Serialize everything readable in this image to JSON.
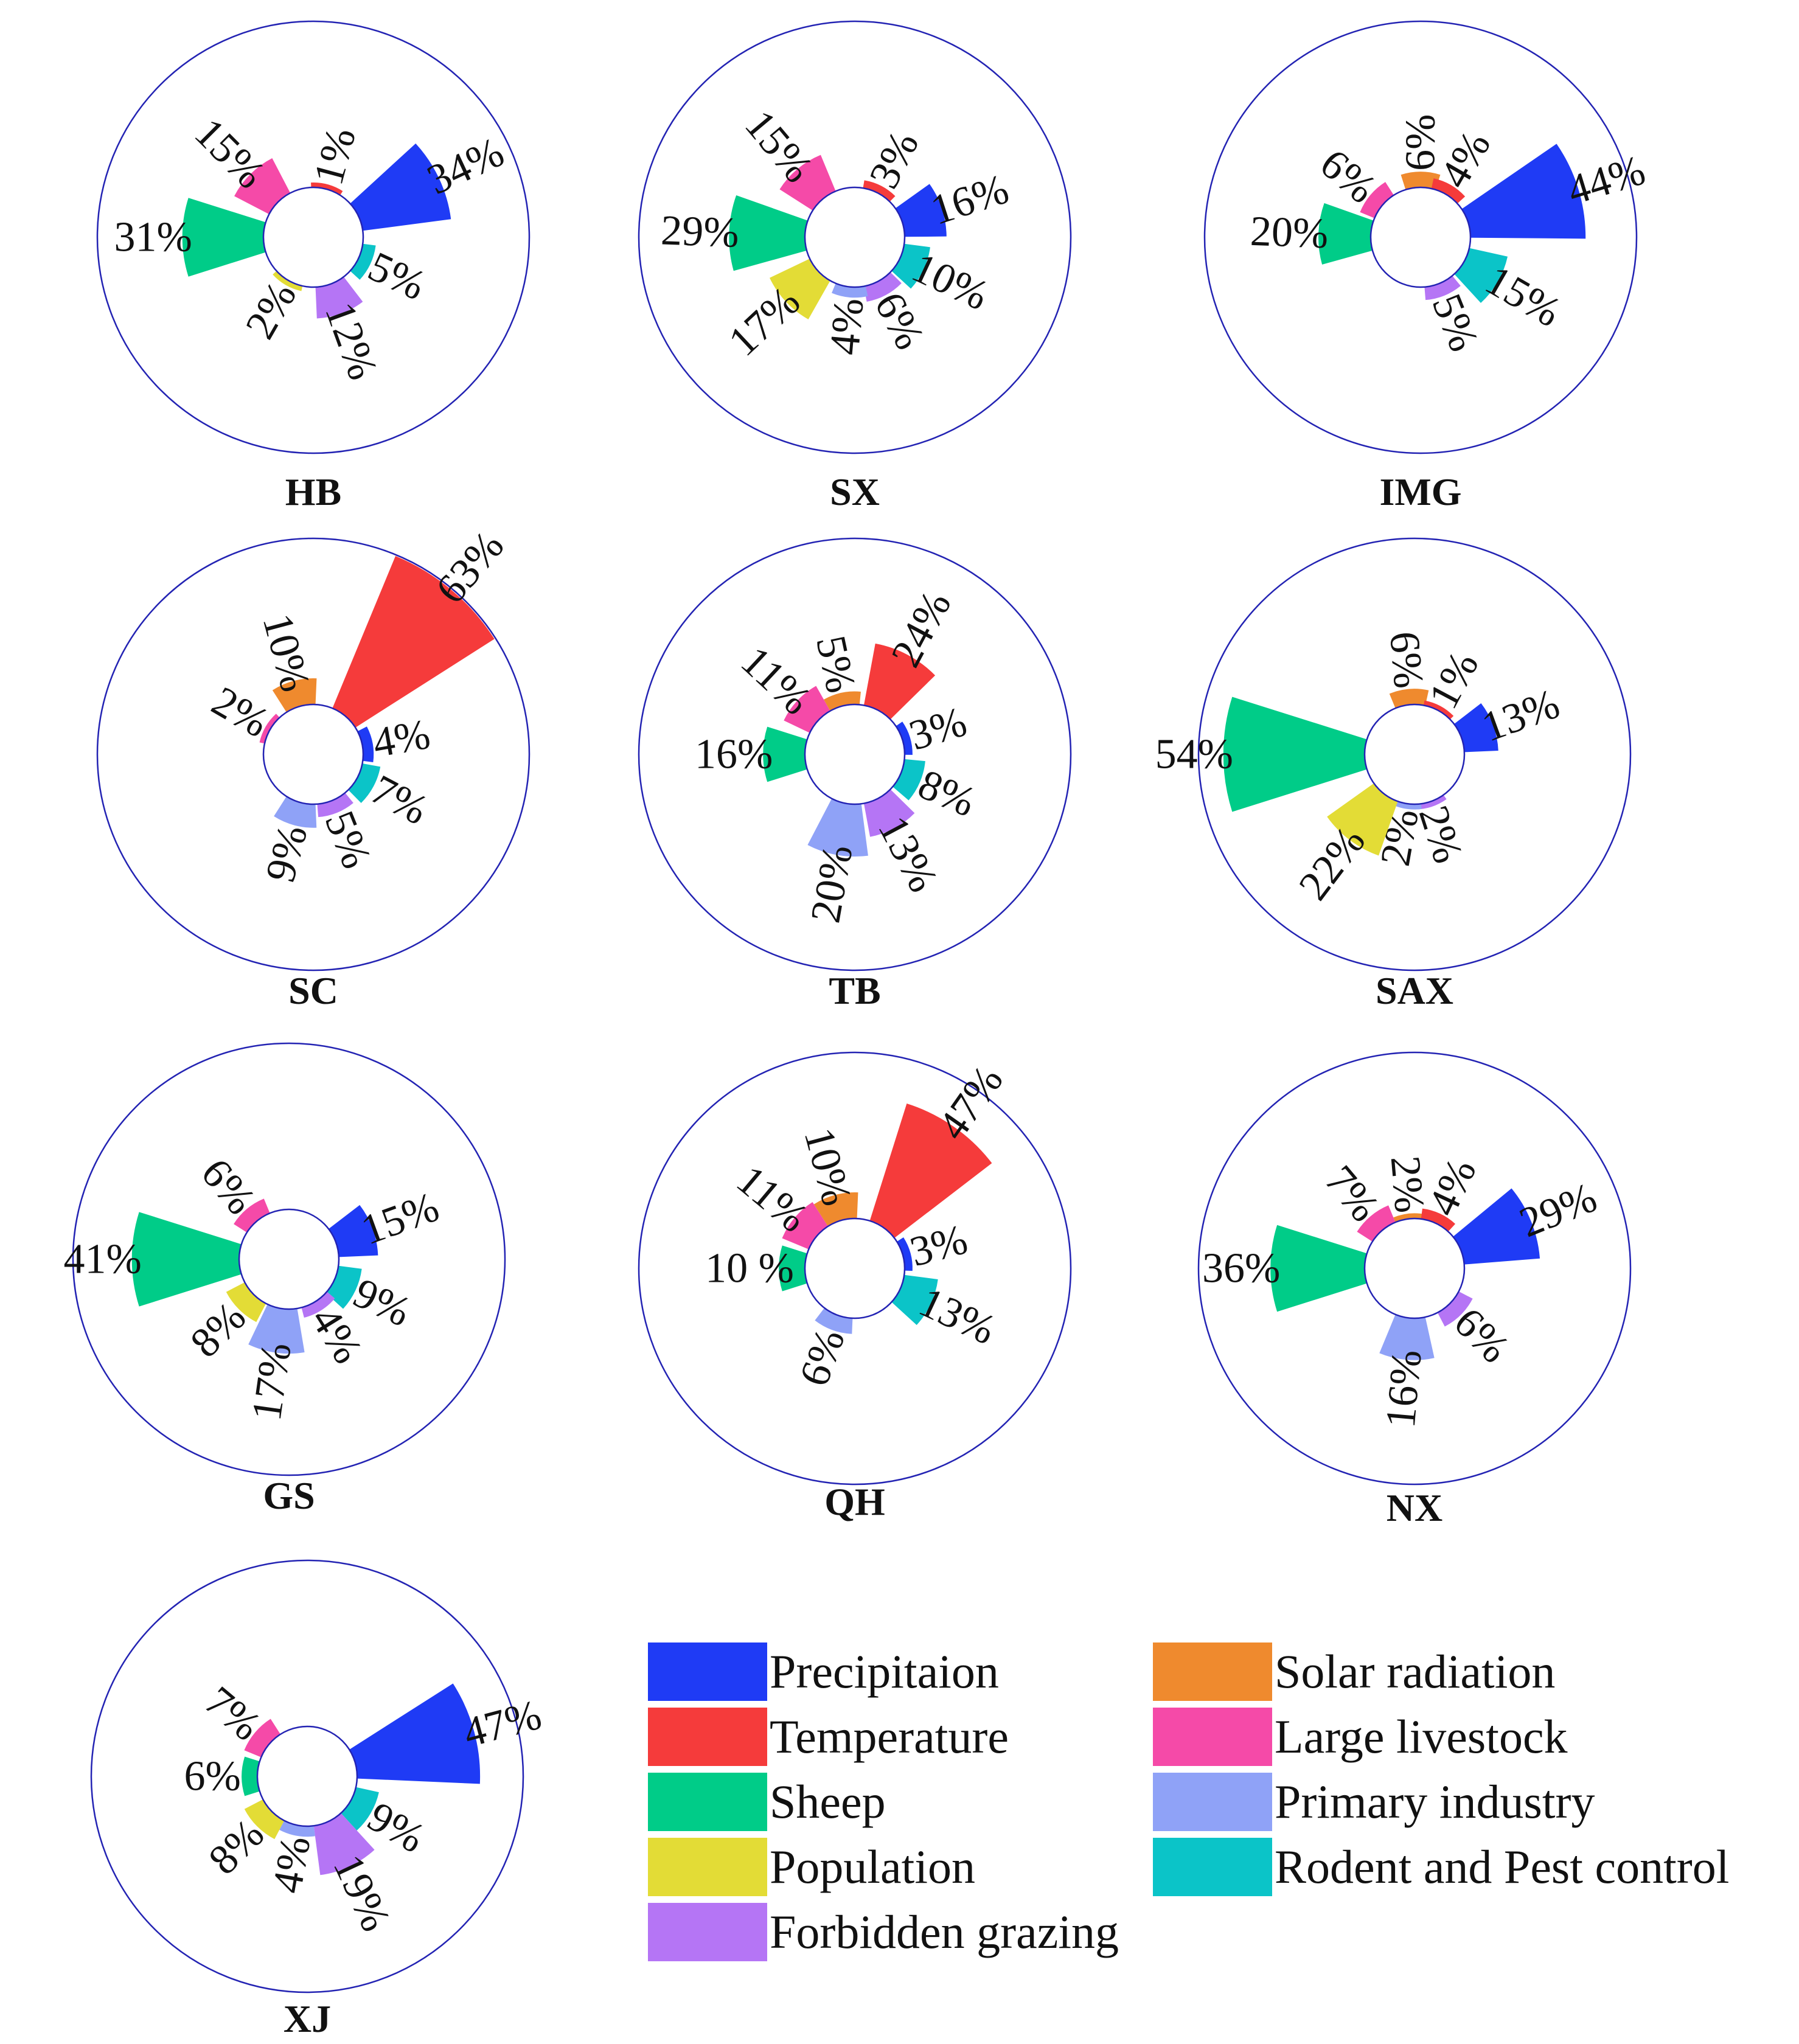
{
  "chart_data": {
    "type": "polar-bar",
    "title": "",
    "categories": [
      "Precipitaion",
      "Temperature",
      "Sheep",
      "Population",
      "Forbidden grazing",
      "Solar radiation",
      "Large livestock",
      "Primary industry",
      "Rodent and Pest control"
    ],
    "colors": {
      "Precipitaion": "#1f3bf5",
      "Temperature": "#f53b3b",
      "Sheep": "#00cc88",
      "Population": "#e3dc36",
      "Forbidden grazing": "#b575f5",
      "Solar radiation": "#ef8a2e",
      "Large livestock": "#f54aa8",
      "Primary industry": "#8fa2f7",
      "Rodent and Pest control": "#0bc4c8"
    },
    "ring_color": "#2323b3",
    "charts": [
      {
        "region": "HB",
        "bars": [
          {
            "category": "Temperature",
            "angle": 75,
            "value": 1,
            "label": "1%"
          },
          {
            "category": "Precipitaion",
            "angle": 25,
            "value": 34,
            "label": "34%"
          },
          {
            "category": "Rodent and Pest control",
            "angle": -25,
            "value": 5,
            "label": "5%"
          },
          {
            "category": "Forbidden grazing",
            "angle": -70,
            "value": 12,
            "label": "12%"
          },
          {
            "category": "Population",
            "angle": -120,
            "value": 2,
            "label": "2%"
          },
          {
            "category": "Sheep",
            "angle": 180,
            "value": 31,
            "label": "31%"
          },
          {
            "category": "Large livestock",
            "angle": 135,
            "value": 15,
            "label": "15%"
          }
        ]
      },
      {
        "region": "SX",
        "bars": [
          {
            "category": "Temperature",
            "angle": 63,
            "value": 3,
            "label": "3%"
          },
          {
            "category": "Precipitaion",
            "angle": 18,
            "value": 16,
            "label": "16%"
          },
          {
            "category": "Rodent and Pest control",
            "angle": -25,
            "value": 10,
            "label": "10%"
          },
          {
            "category": "Forbidden grazing",
            "angle": -62,
            "value": 6,
            "label": "6%"
          },
          {
            "category": "Primary industry",
            "angle": -95,
            "value": 4,
            "label": "4%"
          },
          {
            "category": "Population",
            "angle": -137,
            "value": 17,
            "label": "17%"
          },
          {
            "category": "Sheep",
            "angle": 178,
            "value": 29,
            "label": "29%"
          },
          {
            "category": "Large livestock",
            "angle": 130,
            "value": 15,
            "label": "15%"
          }
        ]
      },
      {
        "region": "IMG",
        "bars": [
          {
            "category": "Solar radiation",
            "angle": 90,
            "value": 6,
            "label": "6%"
          },
          {
            "category": "Temperature",
            "angle": 60,
            "value": 4,
            "label": "4%"
          },
          {
            "category": "Precipitaion",
            "angle": 17,
            "value": 44,
            "label": "44%"
          },
          {
            "category": "Rodent and Pest control",
            "angle": -30,
            "value": 15,
            "label": "15%"
          },
          {
            "category": "Forbidden grazing",
            "angle": -68,
            "value": 5,
            "label": "5%"
          },
          {
            "category": "Sheep",
            "angle": 178,
            "value": 20,
            "label": "20%"
          },
          {
            "category": "Large livestock",
            "angle": 140,
            "value": 6,
            "label": "6%"
          }
        ]
      },
      {
        "region": "SC",
        "bars": [
          {
            "category": "Temperature",
            "angle": 50,
            "value": 63,
            "label": "63%"
          },
          {
            "category": "Precipitaion",
            "angle": 10,
            "value": 4,
            "label": "4%"
          },
          {
            "category": "Rodent and Pest control",
            "angle": -28,
            "value": 7,
            "label": "7%"
          },
          {
            "category": "Forbidden grazing",
            "angle": -68,
            "value": 5,
            "label": "5%"
          },
          {
            "category": "Primary industry",
            "angle": -105,
            "value": 9,
            "label": "9%"
          },
          {
            "category": "Large livestock",
            "angle": 150,
            "value": 2,
            "label": "2%"
          },
          {
            "category": "Solar radiation",
            "angle": 105,
            "value": 10,
            "label": "10%"
          }
        ]
      },
      {
        "region": "TB",
        "bars": [
          {
            "category": "Temperature",
            "angle": 62,
            "value": 24,
            "label": "24%"
          },
          {
            "category": "Precipitaion",
            "angle": 17,
            "value": 3,
            "label": "3%"
          },
          {
            "category": "Rodent and Pest control",
            "angle": -23,
            "value": 8,
            "label": "8%"
          },
          {
            "category": "Forbidden grazing",
            "angle": -62,
            "value": 13,
            "label": "13%"
          },
          {
            "category": "Primary industry",
            "angle": -100,
            "value": 20,
            "label": "20%"
          },
          {
            "category": "Sheep",
            "angle": 180,
            "value": 16,
            "label": "16%"
          },
          {
            "category": "Large livestock",
            "angle": 137,
            "value": 11,
            "label": "11%"
          },
          {
            "category": "Solar radiation",
            "angle": 102,
            "value": 5,
            "label": "5%"
          }
        ]
      },
      {
        "region": "SAX",
        "bars": [
          {
            "category": "Solar radiation",
            "angle": 95,
            "value": 6,
            "label": "6%"
          },
          {
            "category": "Temperature",
            "angle": 62,
            "value": 1,
            "label": "1%"
          },
          {
            "category": "Precipitaion",
            "angle": 20,
            "value": 13,
            "label": "13%"
          },
          {
            "category": "Forbidden grazing",
            "angle": -72,
            "value": 2,
            "label": "2%"
          },
          {
            "category": "Primary industry",
            "angle": -100,
            "value": 2,
            "label": "2%"
          },
          {
            "category": "Population",
            "angle": -127,
            "value": 22,
            "label": "22%"
          },
          {
            "category": "Sheep",
            "angle": 180,
            "value": 54,
            "label": "54%"
          }
        ]
      },
      {
        "region": "GS",
        "bars": [
          {
            "category": "Precipitaion",
            "angle": 20,
            "value": 15,
            "label": "15%"
          },
          {
            "category": "Rodent and Pest control",
            "angle": -25,
            "value": 9,
            "label": "9%"
          },
          {
            "category": "Forbidden grazing",
            "angle": -58,
            "value": 4,
            "label": "4%"
          },
          {
            "category": "Primary industry",
            "angle": -98,
            "value": 17,
            "label": "17%"
          },
          {
            "category": "Population",
            "angle": -135,
            "value": 8,
            "label": "8%"
          },
          {
            "category": "Sheep",
            "angle": 180,
            "value": 41,
            "label": "41%"
          },
          {
            "category": "Large livestock",
            "angle": 130,
            "value": 6,
            "label": "6%"
          }
        ]
      },
      {
        "region": "QH",
        "bars": [
          {
            "category": "Temperature",
            "angle": 55,
            "value": 47,
            "label": "47%"
          },
          {
            "category": "Precipitaion",
            "angle": 15,
            "value": 3,
            "label": "3%"
          },
          {
            "category": "Rodent and Pest control",
            "angle": -25,
            "value": 13,
            "label": "13%"
          },
          {
            "category": "Primary industry",
            "angle": -110,
            "value": 6,
            "label": "6%"
          },
          {
            "category": "Sheep",
            "angle": 180,
            "value": 10,
            "label": "10 %"
          },
          {
            "category": "Large livestock",
            "angle": 140,
            "value": 11,
            "label": "11%"
          },
          {
            "category": "Solar radiation",
            "angle": 105,
            "value": 10,
            "label": "10%"
          }
        ]
      },
      {
        "region": "NX",
        "bars": [
          {
            "category": "Solar radiation",
            "angle": 95,
            "value": 2,
            "label": "2%"
          },
          {
            "category": "Temperature",
            "angle": 65,
            "value": 4,
            "label": "4%"
          },
          {
            "category": "Precipitaion",
            "angle": 22,
            "value": 29,
            "label": "29%"
          },
          {
            "category": "Forbidden grazing",
            "angle": -45,
            "value": 6,
            "label": "6%"
          },
          {
            "category": "Primary industry",
            "angle": -95,
            "value": 16,
            "label": "16%"
          },
          {
            "category": "Sheep",
            "angle": 180,
            "value": 36,
            "label": "36%"
          },
          {
            "category": "Large livestock",
            "angle": 130,
            "value": 7,
            "label": "7%"
          }
        ]
      },
      {
        "region": "XJ",
        "bars": [
          {
            "category": "Precipitaion",
            "angle": 15,
            "value": 47,
            "label": "47%"
          },
          {
            "category": "Rodent and Pest control",
            "angle": -30,
            "value": 9,
            "label": "9%"
          },
          {
            "category": "Forbidden grazing",
            "angle": -65,
            "value": 19,
            "label": "19%"
          },
          {
            "category": "Primary industry",
            "angle": -100,
            "value": 4,
            "label": "4%"
          },
          {
            "category": "Population",
            "angle": -135,
            "value": 8,
            "label": "8%"
          },
          {
            "category": "Sheep",
            "angle": 180,
            "value": 6,
            "label": "6%"
          },
          {
            "category": "Large livestock",
            "angle": 140,
            "value": 7,
            "label": "7%"
          }
        ]
      }
    ]
  },
  "legend": {
    "items": [
      "Precipitaion",
      "Temperature",
      "Sheep",
      "Population",
      "Forbidden grazing",
      "Solar radiation",
      "Large livestock",
      "Primary industry",
      "Rodent and Pest control"
    ]
  }
}
